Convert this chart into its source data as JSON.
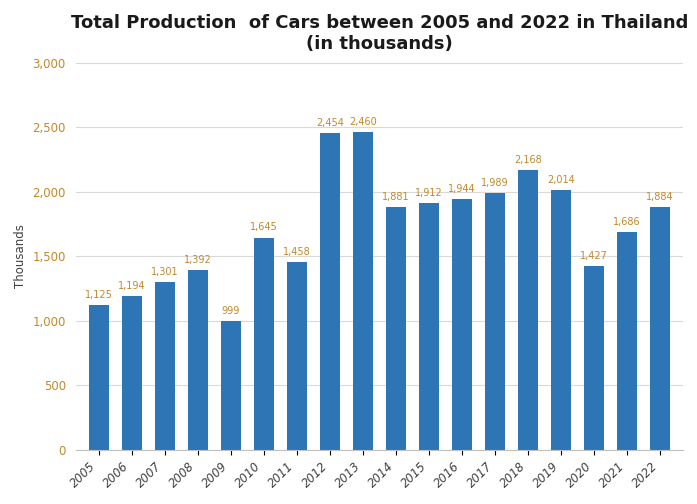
{
  "title": "Total Production  of Cars between 2005 and 2022 in Thailand\n(in thousands)",
  "ylabel": "Thousands",
  "years": [
    "2005",
    "2006",
    "2007",
    "2008",
    "2009",
    "2010",
    "2011",
    "2012",
    "2013",
    "2014",
    "2015",
    "2016",
    "2017",
    "2018",
    "2019",
    "2020",
    "2021",
    "2022"
  ],
  "values": [
    1125,
    1194,
    1301,
    1392,
    999,
    1645,
    1458,
    2454,
    2460,
    1881,
    1912,
    1944,
    1989,
    2168,
    2014,
    1427,
    1686,
    1884
  ],
  "bar_color": "#2E75B6",
  "background_color": "#FFFFFF",
  "ylim": [
    0,
    3000
  ],
  "yticks": [
    0,
    500,
    1000,
    1500,
    2000,
    2500,
    3000
  ],
  "title_fontsize": 13,
  "tick_fontsize": 8.5,
  "ylabel_fontsize": 8.5,
  "annotation_fontsize": 7.0,
  "annotation_color": "#C0892A",
  "ytick_color": "#C0892A",
  "grid_color": "#D9D9D9"
}
